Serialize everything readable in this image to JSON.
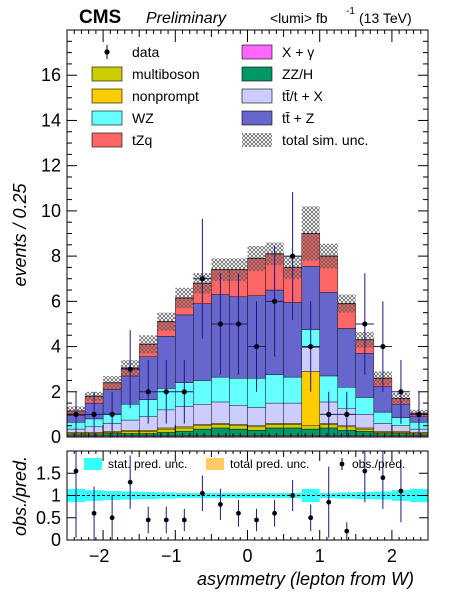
{
  "header": {
    "experiment": "CMS",
    "status": "Preliminary",
    "lumi": "<lumi> fb",
    "lumi_exp": "-1",
    "energy": "(13 TeV)"
  },
  "colors": {
    "multiboson": "#cccc00",
    "nonprompt": "#ffcc00",
    "WZ": "#66ffff",
    "tZq": "#ff6666",
    "X_gamma": "#ff66ff",
    "ZZ_H": "#009966",
    "ttbar_t_X": "#ccccff",
    "ttbar_Z": "#6666cc",
    "data": "#000000",
    "stat_unc": "#33ffff",
    "total_unc": "#ffcc66",
    "ratio_errors": "#1a1a80"
  },
  "chart_data": [
    {
      "type": "bar",
      "stacked": true,
      "xlabel": "asymmetry (lepton from W)",
      "ylabel": "events / 0.25",
      "xlim": [
        -2.5,
        2.5
      ],
      "ylim": [
        0,
        18
      ],
      "xticks": [
        -2,
        -1,
        0,
        1,
        2
      ],
      "yticks": [
        0,
        2,
        4,
        6,
        8,
        10,
        12,
        14,
        16
      ],
      "bin_edges": [
        -2.5,
        -2.25,
        -2.0,
        -1.75,
        -1.5,
        -1.25,
        -1.0,
        -0.75,
        -0.5,
        -0.25,
        0.0,
        0.25,
        0.5,
        0.75,
        1.0,
        1.25,
        1.5,
        1.75,
        2.0,
        2.25,
        2.5
      ],
      "series": [
        {
          "name": "X + γ",
          "key": "X_gamma",
          "values": [
            0.05,
            0.05,
            0.05,
            0.05,
            0.05,
            0.05,
            0.05,
            0.05,
            0.05,
            0.05,
            0.05,
            0.05,
            0.05,
            0.05,
            0.05,
            0.05,
            0.05,
            0.05,
            0.05,
            0.05
          ]
        },
        {
          "name": "ZZ/H",
          "key": "ZZ_H",
          "values": [
            0.05,
            0.05,
            0.1,
            0.1,
            0.1,
            0.15,
            0.2,
            0.3,
            0.35,
            0.3,
            0.25,
            0.35,
            0.35,
            0.3,
            0.35,
            0.25,
            0.2,
            0.1,
            0.1,
            0.05
          ]
        },
        {
          "name": "multiboson",
          "key": "multiboson",
          "values": [
            0.05,
            0.05,
            0.05,
            0.1,
            0.1,
            0.15,
            0.15,
            0.15,
            0.15,
            0.15,
            0.15,
            0.15,
            0.15,
            0.15,
            0.15,
            0.15,
            0.1,
            0.05,
            0.05,
            0.05
          ]
        },
        {
          "name": "nonprompt",
          "key": "nonprompt",
          "values": [
            0.05,
            0.05,
            0.05,
            0.05,
            0.05,
            0.05,
            0.05,
            0.05,
            0.05,
            0.05,
            0.05,
            0.05,
            0.05,
            2.4,
            0.05,
            0.05,
            0.05,
            0.05,
            0.05,
            0.05
          ]
        },
        {
          "name": "tt̄/t + X",
          "key": "ttbar_t_X",
          "values": [
            0.15,
            0.25,
            0.35,
            0.45,
            0.6,
            0.8,
            0.9,
            0.9,
            0.95,
            0.85,
            0.8,
            0.9,
            0.9,
            1.05,
            0.95,
            0.75,
            0.6,
            0.35,
            0.25,
            0.15
          ]
        },
        {
          "name": "WZ",
          "key": "WZ",
          "values": [
            0.3,
            0.35,
            0.45,
            0.7,
            0.75,
            0.95,
            1.05,
            1.05,
            1.1,
            1.2,
            1.3,
            1.25,
            1.15,
            0.8,
            1.15,
            0.95,
            0.75,
            0.5,
            0.35,
            0.3
          ]
        },
        {
          "name": "tt̄ + Z",
          "key": "ttbar_Z",
          "values": [
            0.3,
            0.7,
            1.05,
            1.25,
            1.9,
            2.3,
            3.0,
            3.4,
            3.65,
            3.6,
            3.65,
            3.75,
            3.3,
            2.8,
            3.7,
            2.6,
            1.95,
            1.15,
            0.6,
            0.25
          ]
        },
        {
          "name": "tZq",
          "key": "tZq",
          "values": [
            0.2,
            0.3,
            0.3,
            0.35,
            0.55,
            0.65,
            0.75,
            0.9,
            1.1,
            1.2,
            1.65,
            1.6,
            1.55,
            1.45,
            1.6,
            1.1,
            0.6,
            0.35,
            0.25,
            0.15
          ]
        }
      ],
      "total_unc": [
        0.2,
        0.2,
        0.3,
        0.35,
        0.4,
        0.4,
        0.45,
        0.45,
        0.5,
        0.5,
        0.55,
        0.5,
        0.5,
        1.2,
        0.55,
        0.4,
        0.35,
        0.3,
        0.25,
        0.15
      ],
      "data_points": {
        "name": "data",
        "x": [
          -2.375,
          -2.125,
          -1.875,
          -1.625,
          -1.375,
          -1.125,
          -0.875,
          -0.625,
          -0.375,
          -0.125,
          0.125,
          0.375,
          0.625,
          0.875,
          1.125,
          1.375,
          1.625,
          1.875,
          2.125,
          2.375
        ],
        "y": [
          1,
          1,
          1,
          3,
          2,
          2,
          2,
          7,
          5,
          5,
          4,
          6,
          8,
          4,
          1,
          1,
          5,
          4,
          2,
          1
        ],
        "err": [
          1.0,
          1.0,
          1.0,
          1.73,
          1.41,
          1.41,
          1.41,
          2.65,
          2.24,
          2.24,
          2.0,
          2.45,
          2.83,
          2.0,
          1.0,
          1.0,
          2.24,
          2.0,
          1.41,
          1.0
        ]
      },
      "legend": {
        "position": "top",
        "entries": [
          {
            "label": "data",
            "key": "data",
            "style": "marker"
          },
          {
            "label": "X + γ",
            "key": "X_gamma",
            "style": "box"
          },
          {
            "label": "multiboson",
            "key": "multiboson",
            "style": "box"
          },
          {
            "label": "ZZ/H",
            "key": "ZZ_H",
            "style": "box"
          },
          {
            "label": "nonprompt",
            "key": "nonprompt",
            "style": "box"
          },
          {
            "label": "tt̄/t + X",
            "key": "ttbar_t_X",
            "style": "box"
          },
          {
            "label": "WZ",
            "key": "WZ",
            "style": "box"
          },
          {
            "label": "tt̄ + Z",
            "key": "ttbar_Z",
            "style": "box"
          },
          {
            "label": "tZq",
            "key": "tZq",
            "style": "box"
          },
          {
            "label": "total sim. unc.",
            "key": "total_unc",
            "style": "hatch"
          }
        ]
      }
    },
    {
      "type": "scatter",
      "xlabel": "asymmetry (lepton from W)",
      "ylabel": "obs./pred.",
      "xlim": [
        -2.5,
        2.5
      ],
      "ylim": [
        0,
        2
      ],
      "xticks": [
        -2,
        -1,
        0,
        1,
        2
      ],
      "yticks": [
        0,
        0.5,
        1,
        1.5
      ],
      "ytick_labels": [
        "0",
        "0.5",
        "1",
        "1.5"
      ],
      "reference_line": 1,
      "x": [
        -2.375,
        -2.125,
        -1.875,
        -1.625,
        -1.375,
        -1.125,
        -0.875,
        -0.625,
        -0.375,
        -0.125,
        0.125,
        0.375,
        0.625,
        0.875,
        1.125,
        1.375,
        1.625,
        1.875,
        2.125,
        2.375
      ],
      "ratio": [
        1.55,
        0.6,
        0.5,
        1.3,
        0.45,
        0.45,
        0.45,
        1.05,
        0.8,
        0.6,
        0.45,
        0.6,
        1.0,
        0.5,
        0.85,
        0.2,
        1.55,
        1.4,
        1.1,
        null
      ],
      "ratio_err": [
        1.5,
        0.6,
        0.5,
        0.6,
        0.3,
        0.3,
        0.25,
        0.4,
        0.35,
        0.3,
        0.25,
        0.3,
        0.35,
        0.3,
        0.8,
        0.2,
        0.7,
        0.7,
        0.7,
        null
      ],
      "stat_unc": [
        0.15,
        0.12,
        0.1,
        0.09,
        0.08,
        0.07,
        0.06,
        0.06,
        0.06,
        0.06,
        0.06,
        0.06,
        0.06,
        0.15,
        0.06,
        0.07,
        0.08,
        0.09,
        0.12,
        0.15
      ],
      "legend": {
        "position": "top",
        "entries": [
          {
            "label": "stat. pred. unc.",
            "key": "stat_unc",
            "style": "box"
          },
          {
            "label": "total pred. unc.",
            "key": "total_unc",
            "style": "box"
          },
          {
            "label": "obs./pred.",
            "key": "data",
            "style": "marker"
          }
        ]
      }
    }
  ]
}
